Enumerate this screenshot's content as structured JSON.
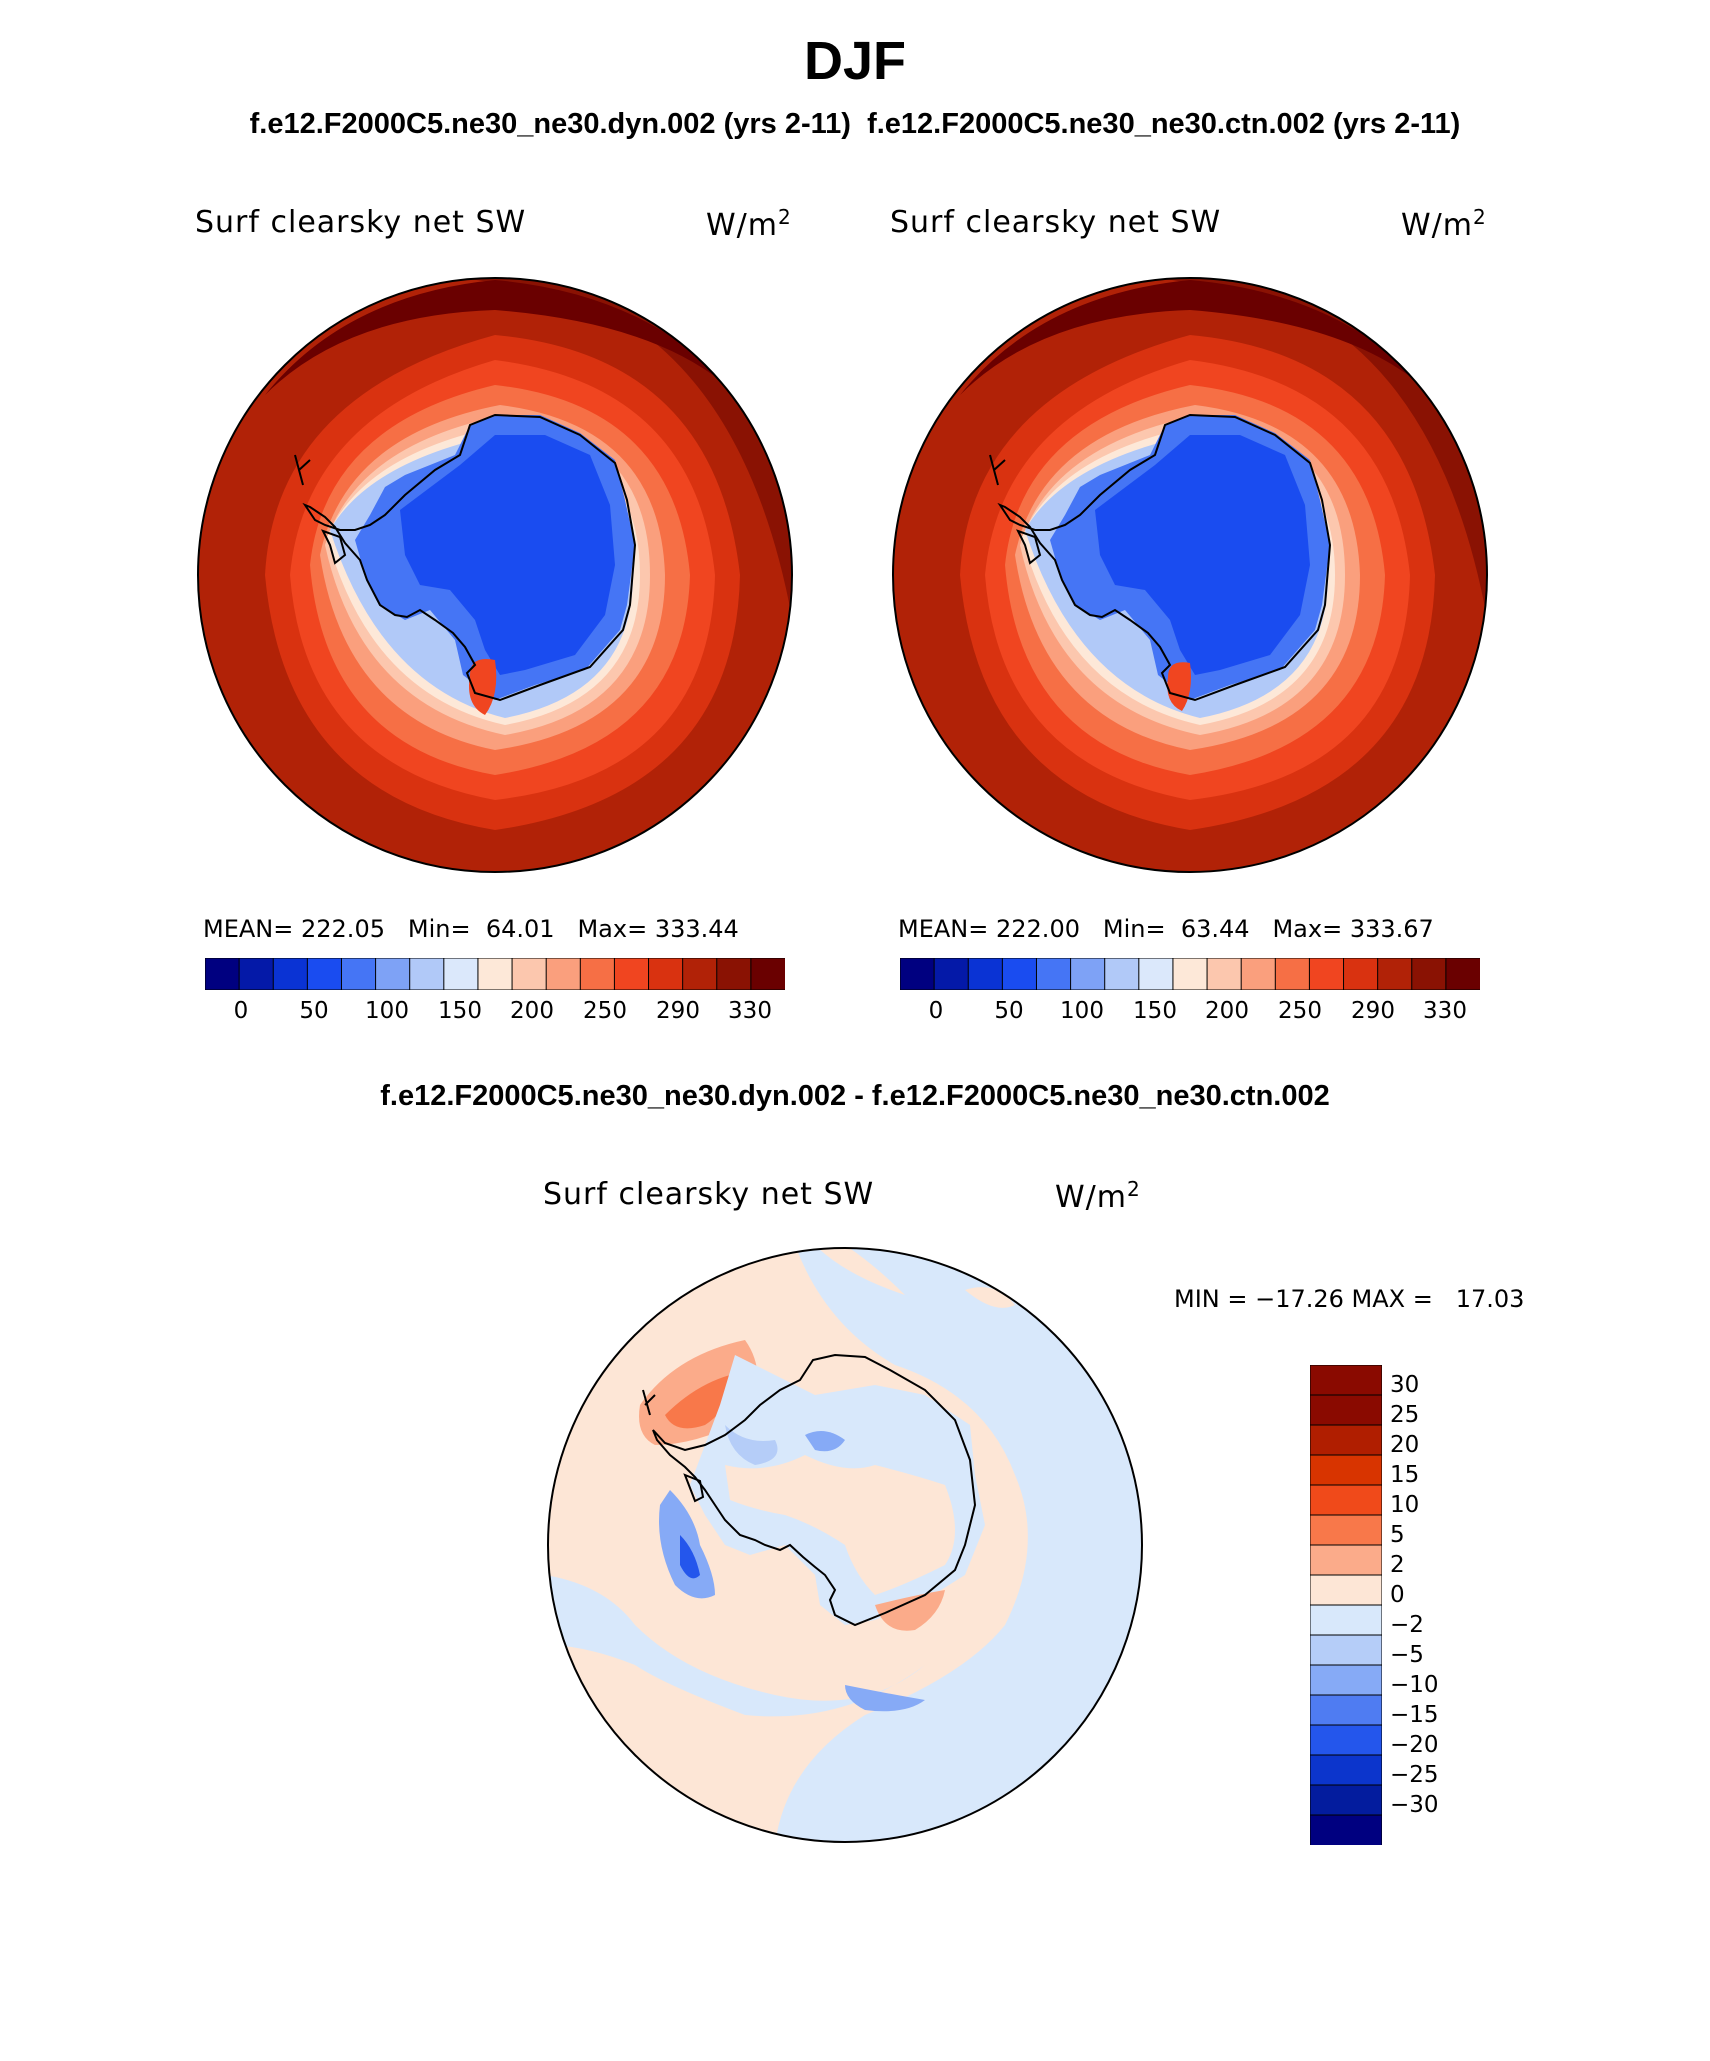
{
  "figure": {
    "title": "DJF",
    "subtitle_left": "f.e12.F2000C5.ne30_ne30.dyn.002 (yrs 2-11)",
    "subtitle_right": "f.e12.F2000C5.ne30_ne30.ctn.002 (yrs 2-11)",
    "diff_title": "f.e12.F2000C5.ne30_ne30.dyn.002 - f.e12.F2000C5.ne30_ne30.ctn.002"
  },
  "panels": [
    {
      "variable": "Surf clearsky net SW",
      "units_base": "W/m",
      "units_exp": "2",
      "mean_label": "MEAN=",
      "mean": "222.05",
      "min_label": "Min=",
      "min": "64.01",
      "max_label": "Max=",
      "max": "333.44"
    },
    {
      "variable": "Surf clearsky net SW",
      "units_base": "W/m",
      "units_exp": "2",
      "mean_label": "MEAN=",
      "mean": "222.00",
      "min_label": "Min=",
      "min": "63.44",
      "max_label": "Max=",
      "max": "333.67"
    }
  ],
  "diff_panel": {
    "variable": "Surf clearsky net SW",
    "units_base": "W/m",
    "units_exp": "2",
    "stats": "MIN = −17.26 MAX =   17.03"
  },
  "abs_colorbar": {
    "colors": [
      "#000080",
      "#0419a8",
      "#0a33d4",
      "#1a4cf0",
      "#4575f5",
      "#7ea2f6",
      "#b1c9f8",
      "#dbe8fb",
      "#fde8d8",
      "#fcc7ae",
      "#fa9f7d",
      "#f66f45",
      "#f04520",
      "#d93210",
      "#b12207",
      "#8a1203",
      "#6a0000"
    ],
    "tick_labels": [
      "0",
      "50",
      "100",
      "150",
      "200",
      "250",
      "290",
      "330"
    ]
  },
  "diff_colorbar": {
    "colors": [
      "#8a0a00",
      "#b01e00",
      "#d83400",
      "#f04a1a",
      "#f8784a",
      "#fbab8a",
      "#fde6d6",
      "#d8e8fb",
      "#b5cdf8",
      "#86aaf6",
      "#4f7cf2",
      "#2456ec",
      "#0c35cc",
      "#031c9e",
      "#000080"
    ],
    "tick_labels": [
      "30",
      "25",
      "20",
      "15",
      "10",
      "5",
      "2",
      "0",
      "−2",
      "−5",
      "−10",
      "−15",
      "−20",
      "−25",
      "−30"
    ]
  },
  "chart_data": {
    "type": "heatmap",
    "title": "DJF",
    "variable": "Surf clearsky net SW",
    "units": "W/m2",
    "projection": "south polar stereographic",
    "panels": [
      {
        "case": "f.e12.F2000C5.ne30_ne30.dyn.002 (yrs 2-11)",
        "mean": 222.05,
        "min": 64.01,
        "max": 333.44
      },
      {
        "case": "f.e12.F2000C5.ne30_ne30.ctn.002 (yrs 2-11)",
        "mean": 222.0,
        "min": 63.44,
        "max": 333.67
      },
      {
        "case": "f.e12.F2000C5.ne30_ne30.dyn.002 - f.e12.F2000C5.ne30_ne30.ctn.002",
        "min": -17.26,
        "max": 17.03
      }
    ],
    "abs_levels": [
      0,
      25,
      50,
      75,
      100,
      125,
      150,
      175,
      200,
      225,
      250,
      270,
      290,
      310,
      330,
      340
    ],
    "diff_levels": [
      -30,
      -25,
      -20,
      -15,
      -10,
      -5,
      -2,
      0,
      2,
      5,
      10,
      15,
      20,
      25,
      30
    ]
  }
}
